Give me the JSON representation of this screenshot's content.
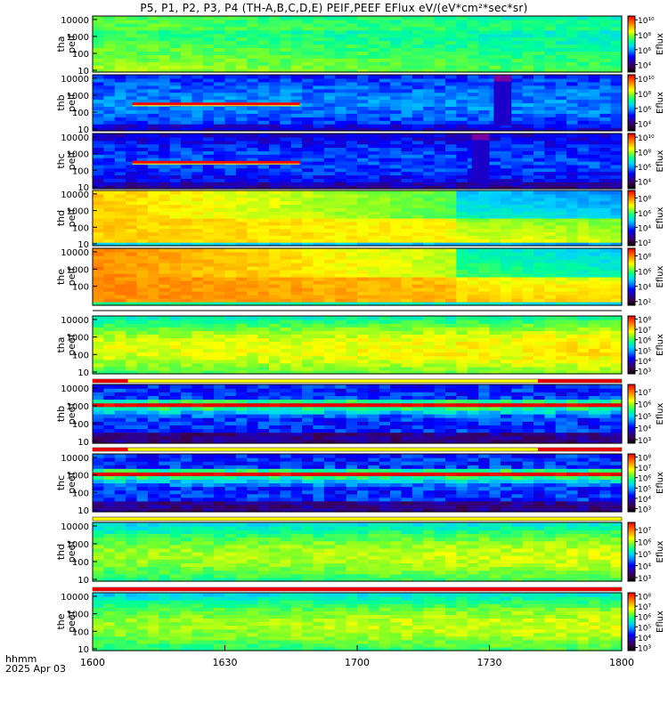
{
  "title": "P5, P1, P2, P3, P4 (TH-A,B,C,D,E) PEIF,PEEF EFlux eV/(eV*cm²*sec*sr)",
  "footer": {
    "time_label": "hhmm",
    "date_label": "2025 Apr 03"
  },
  "chart_data": {
    "type": "heatmap",
    "title": "P5, P1, P2, P3, P4 (TH-A,B,C,D,E) PEIF,PEEF EFlux eV/(eV*cm²*sec*sr)",
    "x_ticks": [
      "1600",
      "1630",
      "1700",
      "1730",
      "1800"
    ],
    "xlim_hhmm": [
      "1600",
      "1800"
    ],
    "y_scale": "log",
    "colorbar_label": "Eflux",
    "colormap": [
      "#000000",
      "#3c0050",
      "#2a00a0",
      "#0000ff",
      "#0078ff",
      "#00d2ff",
      "#00ff96",
      "#78ff28",
      "#ffff00",
      "#ffaa00",
      "#ff5000",
      "#e60000"
    ],
    "panels": [
      {
        "ylabel1": "tha",
        "ylabel2": "peif",
        "y_ticks": [
          "10",
          "100",
          "1000",
          "10000"
        ],
        "cbar_ticks": [
          "10⁴",
          "10⁶",
          "10⁸",
          "10¹⁰"
        ],
        "cbar_range": [
          3,
          10.5
        ],
        "base": 0.55,
        "kind": "ion"
      },
      {
        "ylabel1": "thb",
        "ylabel2": "peif",
        "y_ticks": [
          "10",
          "100",
          "1000",
          "10000"
        ],
        "cbar_ticks": [
          "10⁴",
          "10⁶",
          "10⁸",
          "10¹⁰"
        ],
        "cbar_range": [
          3,
          10.5
        ],
        "base": 0.28,
        "kind": "ion_dark",
        "gap_start": "1731",
        "gap_end": "1735"
      },
      {
        "ylabel1": "thc",
        "ylabel2": "peif",
        "y_ticks": [
          "10",
          "100",
          "1000",
          "10000"
        ],
        "cbar_ticks": [
          "10⁴",
          "10⁶",
          "10⁸",
          "10¹⁰"
        ],
        "cbar_range": [
          3,
          10.5
        ],
        "base": 0.22,
        "kind": "ion_dark",
        "gap_start": "1726",
        "gap_end": "1730"
      },
      {
        "ylabel1": "thd",
        "ylabel2": "peif",
        "y_ticks": [
          "10",
          "100",
          "1000",
          "10000"
        ],
        "cbar_ticks": [
          "10²",
          "10⁴",
          "10⁶",
          "10⁸"
        ],
        "cbar_range": [
          1.5,
          9
        ],
        "base": 0.78,
        "kind": "ion_hot"
      },
      {
        "ylabel1": "the",
        "ylabel2": "peif",
        "y_ticks": [
          "100",
          "1000",
          "10000"
        ],
        "cbar_ticks": [
          "10²",
          "10⁴",
          "10⁶",
          "10⁸"
        ],
        "cbar_range": [
          1.5,
          9
        ],
        "base": 0.85,
        "kind": "ion_hot"
      },
      {
        "ylabel1": "tha",
        "ylabel2": "peef",
        "y_ticks": [
          "10",
          "100",
          "1000",
          "10000"
        ],
        "cbar_ticks": [
          "10³",
          "10⁴",
          "10⁵",
          "10⁶",
          "10⁷",
          "10⁸"
        ],
        "cbar_range": [
          2.7,
          8.3
        ],
        "base": 0.6,
        "kind": "elec"
      },
      {
        "ylabel1": "thb",
        "ylabel2": "peef",
        "y_ticks": [
          "10",
          "100",
          "1000",
          "10000"
        ],
        "cbar_ticks": [
          "10³",
          "10⁴",
          "10⁵",
          "10⁶",
          "10⁷"
        ],
        "cbar_range": [
          2.7,
          7.6
        ],
        "base": 0.3,
        "kind": "elec_band"
      },
      {
        "ylabel1": "thc",
        "ylabel2": "peef",
        "y_ticks": [
          "10",
          "100",
          "1000",
          "10000"
        ],
        "cbar_ticks": [
          "10³",
          "10⁴",
          "10⁵",
          "10⁶",
          "10⁷",
          "10⁸"
        ],
        "cbar_range": [
          2.7,
          8.3
        ],
        "base": 0.3,
        "kind": "elec_band"
      },
      {
        "ylabel1": "thd",
        "ylabel2": "peef",
        "y_ticks": [
          "10",
          "100",
          "1000",
          "10000"
        ],
        "cbar_ticks": [
          "10³",
          "10⁴",
          "10⁵",
          "10⁶",
          "10⁷"
        ],
        "cbar_range": [
          2.7,
          7.6
        ],
        "base": 0.55,
        "kind": "elec"
      },
      {
        "ylabel1": "the",
        "ylabel2": "peef",
        "y_ticks": [
          "10",
          "100",
          "1000",
          "10000"
        ],
        "cbar_ticks": [
          "10³",
          "10⁴",
          "10⁵",
          "10⁶",
          "10⁷",
          "10⁸"
        ],
        "cbar_range": [
          2.7,
          8.3
        ],
        "base": 0.55,
        "kind": "elec"
      }
    ]
  }
}
